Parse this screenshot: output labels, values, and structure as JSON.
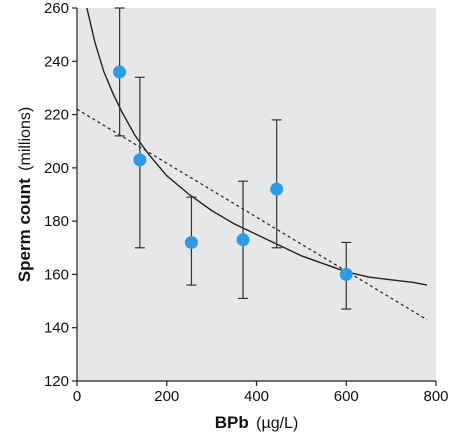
{
  "chart_data": {
    "type": "scatter",
    "xlabel_bold": "BPb",
    "xlabel_unit": "(µg/L)",
    "ylabel_bold": "Sperm count",
    "ylabel_unit": "(millions)",
    "xlim": [
      0,
      800
    ],
    "ylim": [
      120,
      260
    ],
    "x_ticks": [
      "0",
      "200",
      "400",
      "600",
      "800"
    ],
    "y_ticks": [
      "120",
      "140",
      "160",
      "180",
      "200",
      "220",
      "240",
      "260"
    ],
    "grid": false,
    "points": [
      {
        "x": 95,
        "y": 236,
        "err_low": 212,
        "err_high": 260
      },
      {
        "x": 140,
        "y": 203,
        "err_low": 170,
        "err_high": 234
      },
      {
        "x": 255,
        "y": 172,
        "err_low": 156,
        "err_high": 189
      },
      {
        "x": 370,
        "y": 173,
        "err_low": 151,
        "err_high": 195
      },
      {
        "x": 445,
        "y": 192,
        "err_low": 170,
        "err_high": 218
      },
      {
        "x": 600,
        "y": 160,
        "err_low": 147,
        "err_high": 172
      }
    ],
    "fit_curve": {
      "style": "solid",
      "x": [
        22,
        40,
        60,
        80,
        100,
        130,
        160,
        200,
        250,
        300,
        350,
        400,
        450,
        500,
        550,
        600,
        650,
        700,
        750,
        780
      ],
      "y": [
        260,
        247,
        236,
        228,
        221,
        212,
        205,
        197,
        190,
        184,
        179,
        175,
        171,
        167,
        164,
        161,
        159,
        158,
        157,
        156
      ]
    },
    "fit_line": {
      "style": "dashed",
      "x": [
        0,
        780
      ],
      "y": [
        222,
        143
      ]
    },
    "colors": {
      "background": "#e6e7e8",
      "point": "#2e9be6",
      "line": "#222222",
      "errorbar": "#333333"
    }
  }
}
